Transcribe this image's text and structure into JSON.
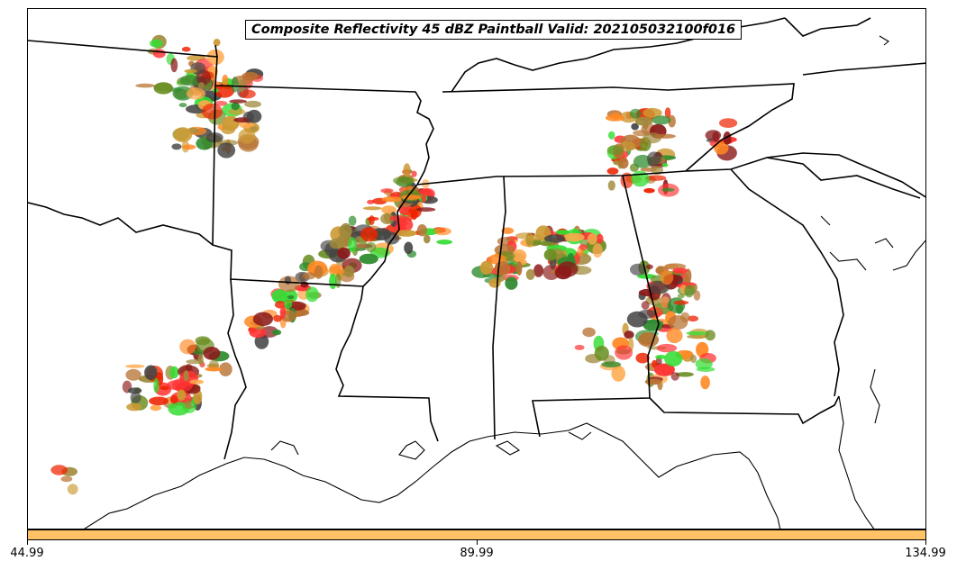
{
  "title": "Composite Reflectivity 45 dBZ Paintball Valid: 202105032100f016",
  "colorbar": {
    "color": "#ffc266",
    "ticks": [
      "44.99",
      "89.99",
      "134.99"
    ]
  },
  "member_colors": [
    "#ff3333",
    "#33dd33",
    "#ff8822",
    "#8b1a1a",
    "#ee2200",
    "#6b8e23",
    "#ffa94d",
    "#a08a3c",
    "#444444",
    "#b87333",
    "#cc9933",
    "#2e8b2e"
  ],
  "map": {
    "projection": "lambert-conformal",
    "region": "Southeast United States",
    "borders": [
      "state",
      "coastline"
    ]
  }
}
